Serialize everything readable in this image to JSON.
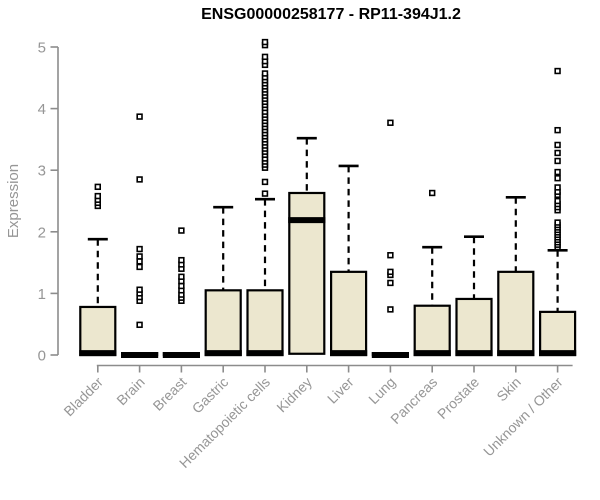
{
  "chart_data": {
    "type": "boxplot",
    "title": "ENSG00000258177 - RP11-394J1.2",
    "ylabel": "Expression",
    "xlabel": "",
    "ylim": [
      0,
      5
    ],
    "yticks": [
      0,
      1,
      2,
      3,
      4,
      5
    ],
    "grid": false,
    "legend": "none",
    "categories": [
      "Bladder",
      "Brain",
      "Breast",
      "Gastric",
      "Hematopoietic cells",
      "Kidney",
      "Liver",
      "Lung",
      "Pancreas",
      "Prostate",
      "Skin",
      "Unknown / Other"
    ],
    "series": [
      {
        "name": "Bladder",
        "q1": 0,
        "median": 0.03,
        "q3": 0.78,
        "whisker_low": 0,
        "whisker_high": 1.88,
        "outliers": [
          2.42,
          2.47,
          2.52,
          2.58,
          2.73
        ]
      },
      {
        "name": "Brain",
        "q1": 0,
        "median": 0,
        "q3": 0.03,
        "whisker_low": 0,
        "whisker_high": 0.03,
        "outliers": [
          0.49,
          0.88,
          0.94,
          1.0,
          1.06,
          1.43,
          1.52,
          1.6,
          1.72,
          2.85,
          3.87
        ]
      },
      {
        "name": "Breast",
        "q1": 0,
        "median": 0,
        "q3": 0.03,
        "whisker_low": 0,
        "whisker_high": 0.03,
        "outliers": [
          0.88,
          0.93,
          0.98,
          1.05,
          1.12,
          1.2,
          1.27,
          1.4,
          1.47,
          1.54,
          2.02
        ]
      },
      {
        "name": "Gastric",
        "q1": 0,
        "median": 0.03,
        "q3": 1.05,
        "whisker_low": 0,
        "whisker_high": 2.4,
        "outliers": []
      },
      {
        "name": "Hematopoietic cells",
        "q1": 0,
        "median": 0.03,
        "q3": 1.05,
        "whisker_low": 0,
        "whisker_high": 2.53,
        "outliers": [
          2.62,
          2.81,
          3.04,
          3.09,
          3.14,
          3.19,
          3.25,
          3.3,
          3.35,
          3.4,
          3.45,
          3.5,
          3.55,
          3.6,
          3.65,
          3.7,
          3.75,
          3.8,
          3.85,
          3.9,
          3.95,
          4.01,
          4.06,
          4.11,
          4.16,
          4.21,
          4.26,
          4.31,
          4.36,
          4.41,
          4.46,
          4.51,
          4.57,
          4.71,
          4.77,
          4.84,
          5.03,
          5.08
        ]
      },
      {
        "name": "Kidney",
        "q1": 0.02,
        "median": 2.19,
        "q3": 2.63,
        "whisker_low": 0.02,
        "whisker_high": 3.52,
        "outliers": []
      },
      {
        "name": "Liver",
        "q1": 0,
        "median": 0.03,
        "q3": 1.35,
        "whisker_low": 0,
        "whisker_high": 3.07,
        "outliers": []
      },
      {
        "name": "Lung",
        "q1": 0,
        "median": 0,
        "q3": 0.03,
        "whisker_low": 0,
        "whisker_high": 0.03,
        "outliers": [
          0.74,
          1.17,
          1.3,
          1.35,
          1.62,
          3.77
        ]
      },
      {
        "name": "Pancreas",
        "q1": 0,
        "median": 0.03,
        "q3": 0.8,
        "whisker_low": 0,
        "whisker_high": 1.75,
        "outliers": [
          2.63
        ]
      },
      {
        "name": "Prostate",
        "q1": 0,
        "median": 0.03,
        "q3": 0.91,
        "whisker_low": 0,
        "whisker_high": 1.92,
        "outliers": []
      },
      {
        "name": "Skin",
        "q1": 0,
        "median": 0.03,
        "q3": 1.35,
        "whisker_low": 0,
        "whisker_high": 2.56,
        "outliers": []
      },
      {
        "name": "Unknown / Other",
        "q1": 0,
        "median": 0.03,
        "q3": 0.7,
        "whisker_low": 0,
        "whisker_high": 1.7,
        "outliers": [
          1.75,
          1.79,
          1.83,
          1.87,
          1.91,
          1.95,
          1.99,
          2.03,
          2.07,
          2.11,
          2.15,
          2.35,
          2.4,
          2.45,
          2.5,
          2.6,
          2.65,
          2.72,
          2.87,
          2.97,
          3.15,
          3.28,
          3.41,
          3.65,
          4.61
        ]
      }
    ],
    "style": {
      "box_fill": "#ece7cf",
      "box_stroke": "#000000",
      "median_color": "#000000",
      "whisker_color": "#000000",
      "outlier_fill": "#ffffff",
      "outlier_stroke": "#000000",
      "axis_color": "#8c8c8c",
      "tick_label_color": "#969696",
      "title_color": "#000000",
      "background": "#ffffff"
    }
  }
}
